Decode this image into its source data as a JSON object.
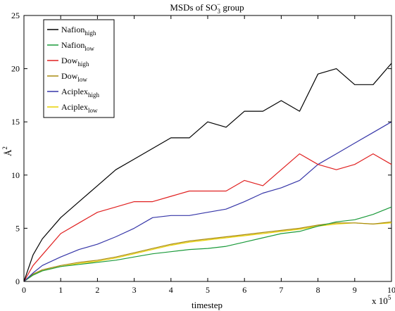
{
  "chart_data": {
    "type": "line",
    "title": {
      "main": "MSDs of SO",
      "sub": "3",
      "sup": "−",
      "rest": " group"
    },
    "xlabel": "timestep",
    "ylabel": {
      "base": "Å",
      "sup": "2"
    },
    "x_multiplier": {
      "base": "x 10",
      "sup": "5"
    },
    "xlim": [
      0,
      10
    ],
    "ylim": [
      0,
      25
    ],
    "xticks": [
      0,
      1,
      2,
      3,
      4,
      5,
      6,
      7,
      8,
      9,
      10
    ],
    "yticks": [
      0,
      5,
      10,
      15,
      20,
      25
    ],
    "grid": false,
    "legend_position": "top-left",
    "series": [
      {
        "name": "Nafion",
        "sub": "high",
        "color": "#000000",
        "x": [
          0,
          0.25,
          0.5,
          1,
          1.5,
          2,
          2.5,
          3,
          3.5,
          4,
          4.5,
          5,
          5.5,
          6,
          6.5,
          7,
          7.5,
          8,
          8.5,
          9,
          9.5,
          10
        ],
        "values": [
          0,
          2.5,
          4,
          6,
          7.5,
          9,
          10.5,
          11.5,
          12.5,
          13.5,
          13.5,
          15,
          14.5,
          16,
          16,
          17,
          16,
          19.5,
          20,
          18.5,
          18.5,
          20.5
        ]
      },
      {
        "name": "Nafion",
        "sub": "low",
        "color": "#1a9a3a",
        "x": [
          0,
          0.25,
          0.5,
          1,
          1.5,
          2,
          2.5,
          3,
          3.5,
          4,
          4.5,
          5,
          5.5,
          6,
          6.5,
          7,
          7.5,
          8,
          8.5,
          9,
          9.5,
          10
        ],
        "values": [
          0,
          0.6,
          1,
          1.4,
          1.6,
          1.8,
          2,
          2.3,
          2.6,
          2.8,
          3,
          3.1,
          3.3,
          3.7,
          4.1,
          4.5,
          4.7,
          5.2,
          5.6,
          5.8,
          6.3,
          7
        ]
      },
      {
        "name": "Dow",
        "sub": "high",
        "color": "#e02020",
        "x": [
          0,
          0.25,
          0.5,
          1,
          1.5,
          2,
          2.5,
          3,
          3.5,
          4,
          4.5,
          5,
          5.5,
          6,
          6.5,
          7,
          7.5,
          8,
          8.5,
          9,
          9.5,
          10
        ],
        "values": [
          0,
          1.5,
          2.5,
          4.5,
          5.5,
          6.5,
          7,
          7.5,
          7.5,
          8,
          8.5,
          8.5,
          8.5,
          9.5,
          9,
          10.5,
          12,
          11,
          10.5,
          11,
          12,
          11
        ]
      },
      {
        "name": "Dow",
        "sub": "low",
        "color": "#a88a10",
        "x": [
          0,
          0.25,
          0.5,
          1,
          1.5,
          2,
          2.5,
          3,
          3.5,
          4,
          4.5,
          5,
          5.5,
          6,
          6.5,
          7,
          7.5,
          8,
          8.5,
          9,
          9.5,
          10
        ],
        "values": [
          0,
          0.7,
          1.1,
          1.5,
          1.8,
          2,
          2.3,
          2.7,
          3.1,
          3.5,
          3.8,
          4,
          4.2,
          4.4,
          4.6,
          4.8,
          5,
          5.3,
          5.5,
          5.5,
          5.4,
          5.6
        ]
      },
      {
        "name": "Aciplex",
        "sub": "high",
        "color": "#3636a8",
        "x": [
          0,
          0.25,
          0.5,
          1,
          1.5,
          2,
          2.5,
          3,
          3.5,
          4,
          4.5,
          5,
          5.5,
          6,
          6.5,
          7,
          7.5,
          8,
          8.5,
          9,
          9.5,
          10
        ],
        "values": [
          0,
          0.8,
          1.5,
          2.3,
          3,
          3.5,
          4.2,
          5,
          6,
          6.2,
          6.2,
          6.5,
          6.8,
          7.5,
          8.3,
          8.8,
          9.5,
          11,
          12,
          13,
          14,
          15
        ]
      },
      {
        "name": "Aciplex",
        "sub": "low",
        "color": "#e8d000",
        "x": [
          0,
          0.25,
          0.5,
          1,
          1.5,
          2,
          2.5,
          3,
          3.5,
          4,
          4.5,
          5,
          5.5,
          6,
          6.5,
          7,
          7.5,
          8,
          8.5,
          9,
          9.5,
          10
        ],
        "values": [
          0,
          0.6,
          1,
          1.4,
          1.7,
          1.9,
          2.2,
          2.6,
          3,
          3.4,
          3.7,
          3.9,
          4.1,
          4.3,
          4.5,
          4.7,
          4.9,
          5.2,
          5.4,
          5.5,
          5.4,
          5.5
        ]
      }
    ]
  }
}
